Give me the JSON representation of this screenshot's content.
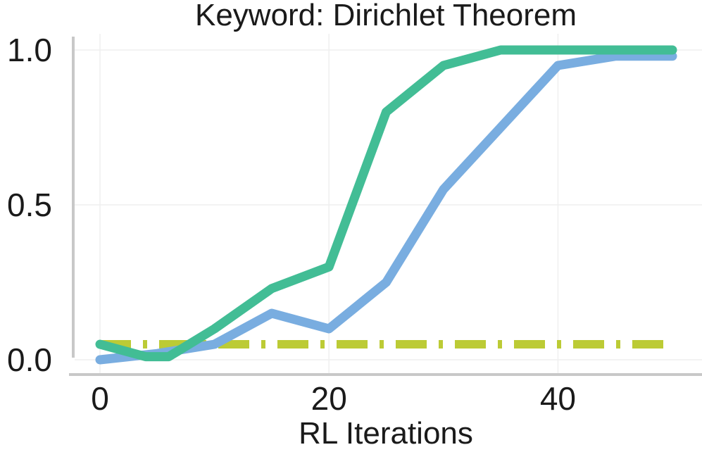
{
  "chart_data": {
    "type": "line",
    "title": "Keyword: Dirichlet Theorem",
    "xlabel": "RL Iterations",
    "ylabel": "",
    "xlim": [
      -2,
      52
    ],
    "ylim": [
      0,
      1
    ],
    "xticks": [
      0,
      20,
      40
    ],
    "yticks": [
      0.0,
      0.5,
      1.0
    ],
    "xtick_labels": [
      "0",
      "20",
      "40"
    ],
    "ytick_labels": [
      "0.0",
      "0.5",
      "1.0"
    ],
    "grid": true,
    "legend": "none",
    "series": [
      {
        "color": "#79ade0",
        "style": "solid",
        "x": [
          0,
          5,
          10,
          15,
          20,
          25,
          30,
          35,
          40,
          45,
          50
        ],
        "y": [
          0.0,
          0.02,
          0.05,
          0.15,
          0.1,
          0.25,
          0.55,
          0.75,
          0.95,
          0.98,
          0.98
        ]
      },
      {
        "color": "#42bd95",
        "style": "solid",
        "x": [
          0,
          4,
          6,
          10,
          15,
          20,
          25,
          30,
          35,
          40,
          45,
          50
        ],
        "y": [
          0.05,
          0.01,
          0.01,
          0.1,
          0.23,
          0.3,
          0.8,
          0.95,
          1.0,
          1.0,
          1.0,
          1.0
        ]
      },
      {
        "color": "#bccb35",
        "style": "dashdot",
        "x": [
          0,
          50
        ],
        "y": [
          0.05,
          0.05
        ]
      }
    ]
  }
}
